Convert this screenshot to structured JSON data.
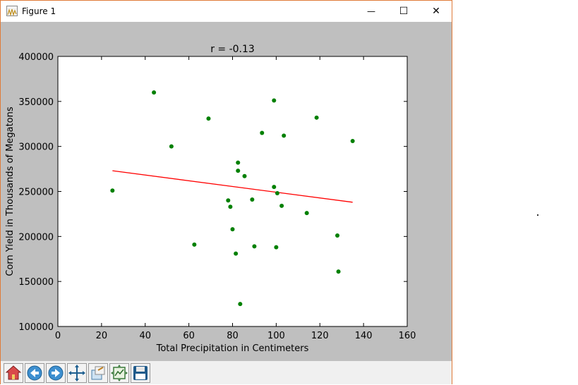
{
  "window": {
    "title": "Figure 1",
    "controls": {
      "minimize": "—",
      "maximize": "☐",
      "close": "✕"
    }
  },
  "toolbar": {
    "buttons": [
      "home-icon",
      "back-icon",
      "forward-icon",
      "pan-icon",
      "configure-subplots-icon",
      "edit-axis-icon",
      "save-icon"
    ]
  },
  "chart_data": {
    "type": "scatter",
    "title": "r = -0.13",
    "xlabel": "Total Precipitation in Centimeters",
    "ylabel": "Corn Yield in Thousands of Megatons",
    "xlim": [
      0,
      160
    ],
    "ylim": [
      100000,
      400000
    ],
    "xticks": [
      0,
      20,
      40,
      60,
      80,
      100,
      120,
      140,
      160
    ],
    "yticks": [
      100000,
      150000,
      200000,
      250000,
      300000,
      350000,
      400000
    ],
    "grid": false,
    "points_color": "#008000",
    "line_color": "#ff0000",
    "points": [
      [
        25,
        251000
      ],
      [
        44,
        360000
      ],
      [
        52,
        300000
      ],
      [
        62.5,
        191000
      ],
      [
        69,
        331000
      ],
      [
        78,
        240000
      ],
      [
        79,
        233000
      ],
      [
        80,
        208000
      ],
      [
        81.5,
        181000
      ],
      [
        82.5,
        282000
      ],
      [
        82.5,
        273000
      ],
      [
        83.5,
        125000
      ],
      [
        85.5,
        267000
      ],
      [
        89,
        241000
      ],
      [
        90,
        189000
      ],
      [
        93.5,
        315000
      ],
      [
        99,
        351000
      ],
      [
        99,
        255000
      ],
      [
        100,
        188000
      ],
      [
        100.5,
        248000
      ],
      [
        102.5,
        234000
      ],
      [
        103.5,
        312000
      ],
      [
        114,
        226000
      ],
      [
        118.5,
        332000
      ],
      [
        128,
        201000
      ],
      [
        128.5,
        161000
      ],
      [
        135,
        306000
      ]
    ],
    "fit_line": {
      "x": [
        25,
        135
      ],
      "y": [
        273000,
        238000
      ]
    }
  }
}
